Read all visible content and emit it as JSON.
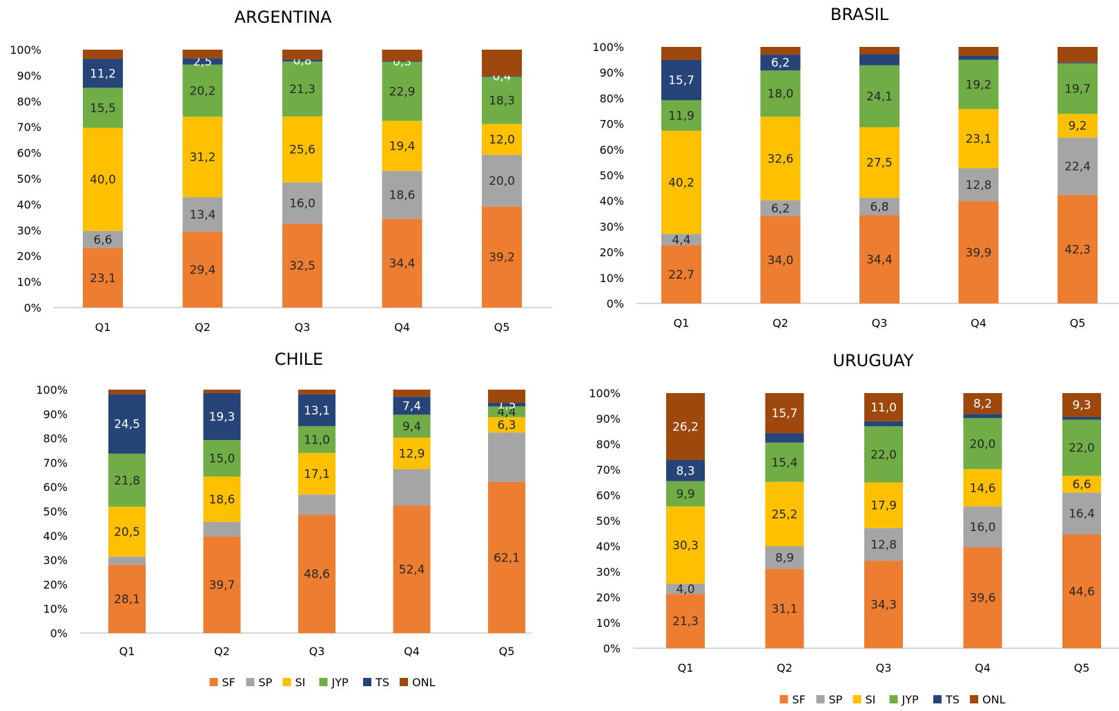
{
  "colors": {
    "SF": "#ED7D31",
    "SP": "#A5A5A5",
    "SI": "#FFC000",
    "JYP": "#70AD47",
    "TS": "#264478",
    "ONL": "#9E480E"
  },
  "chart_data": [
    {
      "type": "bar",
      "stacked": true,
      "title": "ARGENTINA",
      "categories": [
        "Q1",
        "Q2",
        "Q3",
        "Q4",
        "Q5"
      ],
      "ylim": [
        0,
        100
      ],
      "yticks": [
        "0%",
        "10%",
        "20%",
        "30%",
        "40%",
        "50%",
        "60%",
        "70%",
        "80%",
        "90%",
        "100%"
      ],
      "legend": false,
      "series": [
        {
          "name": "SF",
          "values": [
            23.1,
            29.4,
            32.5,
            34.4,
            39.2
          ],
          "labels": [
            "23,1",
            "29,4",
            "32,5",
            "34,4",
            "39,2"
          ]
        },
        {
          "name": "SP",
          "values": [
            6.6,
            13.4,
            16.0,
            18.6,
            20.0
          ],
          "labels": [
            "6,6",
            "13,4",
            "16,0",
            "18,6",
            "20,0"
          ]
        },
        {
          "name": "SI",
          "values": [
            40.0,
            31.2,
            25.6,
            19.4,
            12.0
          ],
          "labels": [
            "40,0",
            "31,2",
            "25,6",
            "19,4",
            "12,0"
          ]
        },
        {
          "name": "JYP",
          "values": [
            15.5,
            20.2,
            21.3,
            22.9,
            18.3
          ],
          "labels": [
            "15,5",
            "20,2",
            "21,3",
            "22,9",
            "18,3"
          ]
        },
        {
          "name": "TS",
          "values": [
            11.2,
            2.5,
            0.8,
            0.3,
            0.4
          ],
          "labels": [
            "11,2",
            "2,5",
            "0,8",
            "0,3",
            "0,4"
          ]
        },
        {
          "name": "ONL",
          "values": [
            3.6,
            3.3,
            3.8,
            4.4,
            10.1
          ],
          "labels": [
            "",
            "",
            "",
            "",
            ""
          ]
        }
      ]
    },
    {
      "type": "bar",
      "stacked": true,
      "title": "BRASIL",
      "categories": [
        "Q1",
        "Q2",
        "Q3",
        "Q4",
        "Q5"
      ],
      "ylim": [
        0,
        100
      ],
      "yticks": [
        "0%",
        "10%",
        "20%",
        "30%",
        "40%",
        "50%",
        "60%",
        "70%",
        "80%",
        "90%",
        "100%"
      ],
      "legend": false,
      "series": [
        {
          "name": "SF",
          "values": [
            22.7,
            34.0,
            34.4,
            39.9,
            42.3
          ],
          "labels": [
            "22,7",
            "34,0",
            "34,4",
            "39,9",
            "42,3"
          ]
        },
        {
          "name": "SP",
          "values": [
            4.4,
            6.2,
            6.8,
            12.8,
            22.4
          ],
          "labels": [
            "4,4",
            "6,2",
            "6,8",
            "12,8",
            "22,4"
          ]
        },
        {
          "name": "SI",
          "values": [
            40.2,
            32.6,
            27.5,
            23.1,
            9.2
          ],
          "labels": [
            "40,2",
            "32,6",
            "27,5",
            "23,1",
            "9,2"
          ]
        },
        {
          "name": "JYP",
          "values": [
            11.9,
            18.0,
            24.1,
            19.2,
            19.7
          ],
          "labels": [
            "11,9",
            "18,0",
            "24,1",
            "19,2",
            "19,7"
          ]
        },
        {
          "name": "TS",
          "values": [
            15.7,
            6.2,
            4.4,
            1.5,
            0.4
          ],
          "labels": [
            "15,7",
            "6,2",
            "",
            "",
            ""
          ]
        },
        {
          "name": "ONL",
          "values": [
            5.1,
            3.0,
            2.8,
            3.5,
            6.0
          ],
          "labels": [
            "",
            "",
            "",
            "",
            ""
          ]
        }
      ]
    },
    {
      "type": "bar",
      "stacked": true,
      "title": "CHILE",
      "categories": [
        "Q1",
        "Q2",
        "Q3",
        "Q4",
        "Q5"
      ],
      "ylim": [
        0,
        100
      ],
      "yticks": [
        "0%",
        "10%",
        "20%",
        "30%",
        "40%",
        "50%",
        "60%",
        "70%",
        "80%",
        "90%",
        "100%"
      ],
      "legend": true,
      "series": [
        {
          "name": "SF",
          "values": [
            28.1,
            39.7,
            48.6,
            52.4,
            62.1
          ],
          "labels": [
            "28,1",
            "39,7",
            "48,6",
            "52,4",
            "62,1"
          ]
        },
        {
          "name": "SP",
          "values": [
            3.3,
            6.0,
            8.3,
            15.0,
            20.3
          ],
          "labels": [
            "",
            "",
            "",
            "",
            ""
          ]
        },
        {
          "name": "SI",
          "values": [
            20.5,
            18.6,
            17.1,
            12.9,
            6.3
          ],
          "labels": [
            "20,5",
            "18,6",
            "17,1",
            "12,9",
            "6,3"
          ]
        },
        {
          "name": "JYP",
          "values": [
            21.8,
            15.0,
            11.0,
            9.4,
            4.4
          ],
          "labels": [
            "21,8",
            "15,0",
            "11,0",
            "9,4",
            "4,4"
          ]
        },
        {
          "name": "TS",
          "values": [
            24.5,
            19.3,
            13.1,
            7.4,
            1.5
          ],
          "labels": [
            "24,5",
            "19,3",
            "13,1",
            "7,4",
            "1,5"
          ]
        },
        {
          "name": "ONL",
          "values": [
            1.8,
            1.4,
            1.9,
            2.9,
            5.4
          ],
          "labels": [
            "",
            "",
            "",
            "",
            ""
          ]
        }
      ]
    },
    {
      "type": "bar",
      "stacked": true,
      "title": "URUGUAY",
      "categories": [
        "Q1",
        "Q2",
        "Q3",
        "Q4",
        "Q5"
      ],
      "ylim": [
        0,
        100
      ],
      "yticks": [
        "0%",
        "10%",
        "20%",
        "30%",
        "40%",
        "50%",
        "60%",
        "70%",
        "80%",
        "90%",
        "100%"
      ],
      "legend": true,
      "series": [
        {
          "name": "SF",
          "values": [
            21.3,
            31.1,
            34.3,
            39.6,
            44.6
          ],
          "labels": [
            "21,3",
            "31,1",
            "34,3",
            "39,6",
            "44,6"
          ]
        },
        {
          "name": "SP",
          "values": [
            4.0,
            8.9,
            12.8,
            16.0,
            16.4
          ],
          "labels": [
            "4,0",
            "8,9",
            "12,8",
            "16,0",
            "16,4"
          ]
        },
        {
          "name": "SI",
          "values": [
            30.3,
            25.2,
            17.9,
            14.6,
            6.6
          ],
          "labels": [
            "30,3",
            "25,2",
            "17,9",
            "14,6",
            "6,6"
          ]
        },
        {
          "name": "JYP",
          "values": [
            9.9,
            15.4,
            22.0,
            20.0,
            22.0
          ],
          "labels": [
            "9,9",
            "15,4",
            "22,0",
            "20,0",
            "22,0"
          ]
        },
        {
          "name": "TS",
          "values": [
            8.3,
            3.7,
            2.0,
            1.6,
            1.1
          ],
          "labels": [
            "8,3",
            "",
            "",
            "",
            ""
          ]
        },
        {
          "name": "ONL",
          "values": [
            26.2,
            15.7,
            11.0,
            8.2,
            9.3
          ],
          "labels": [
            "26,2",
            "15,7",
            "11,0",
            "8,2",
            "9,3"
          ]
        }
      ]
    }
  ]
}
